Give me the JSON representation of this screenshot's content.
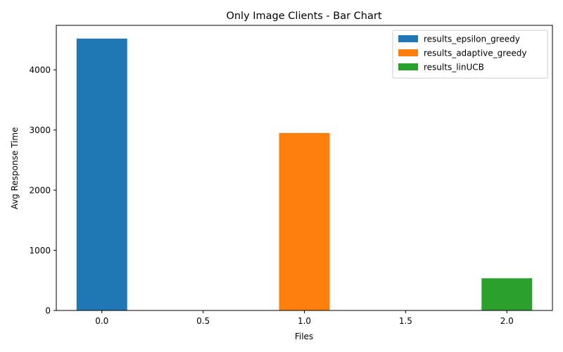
{
  "chart_data": {
    "type": "bar",
    "title": "Only Image Clients - Bar Chart",
    "xlabel": "Files",
    "ylabel": "Avg Response Time",
    "xlim": [
      -0.225,
      2.225
    ],
    "ylim": [
      0,
      4740
    ],
    "xticks": [
      0.0,
      0.5,
      1.0,
      1.5,
      2.0
    ],
    "xtick_labels": [
      "0.0",
      "0.5",
      "1.0",
      "1.5",
      "2.0"
    ],
    "yticks": [
      0,
      1000,
      2000,
      3000,
      4000
    ],
    "ytick_labels": [
      "0",
      "1000",
      "2000",
      "3000",
      "4000"
    ],
    "bar_width": 0.25,
    "grid": false,
    "legend_position": "top-right",
    "series": [
      {
        "name": "results_epsilon_greedy",
        "x": 0.0,
        "value": 4520,
        "color": "#1f77b4"
      },
      {
        "name": "results_adaptive_greedy",
        "x": 1.0,
        "value": 2950,
        "color": "#ff7f0e"
      },
      {
        "name": "results_linUCB",
        "x": 2.0,
        "value": 535,
        "color": "#2ca02c"
      }
    ]
  }
}
